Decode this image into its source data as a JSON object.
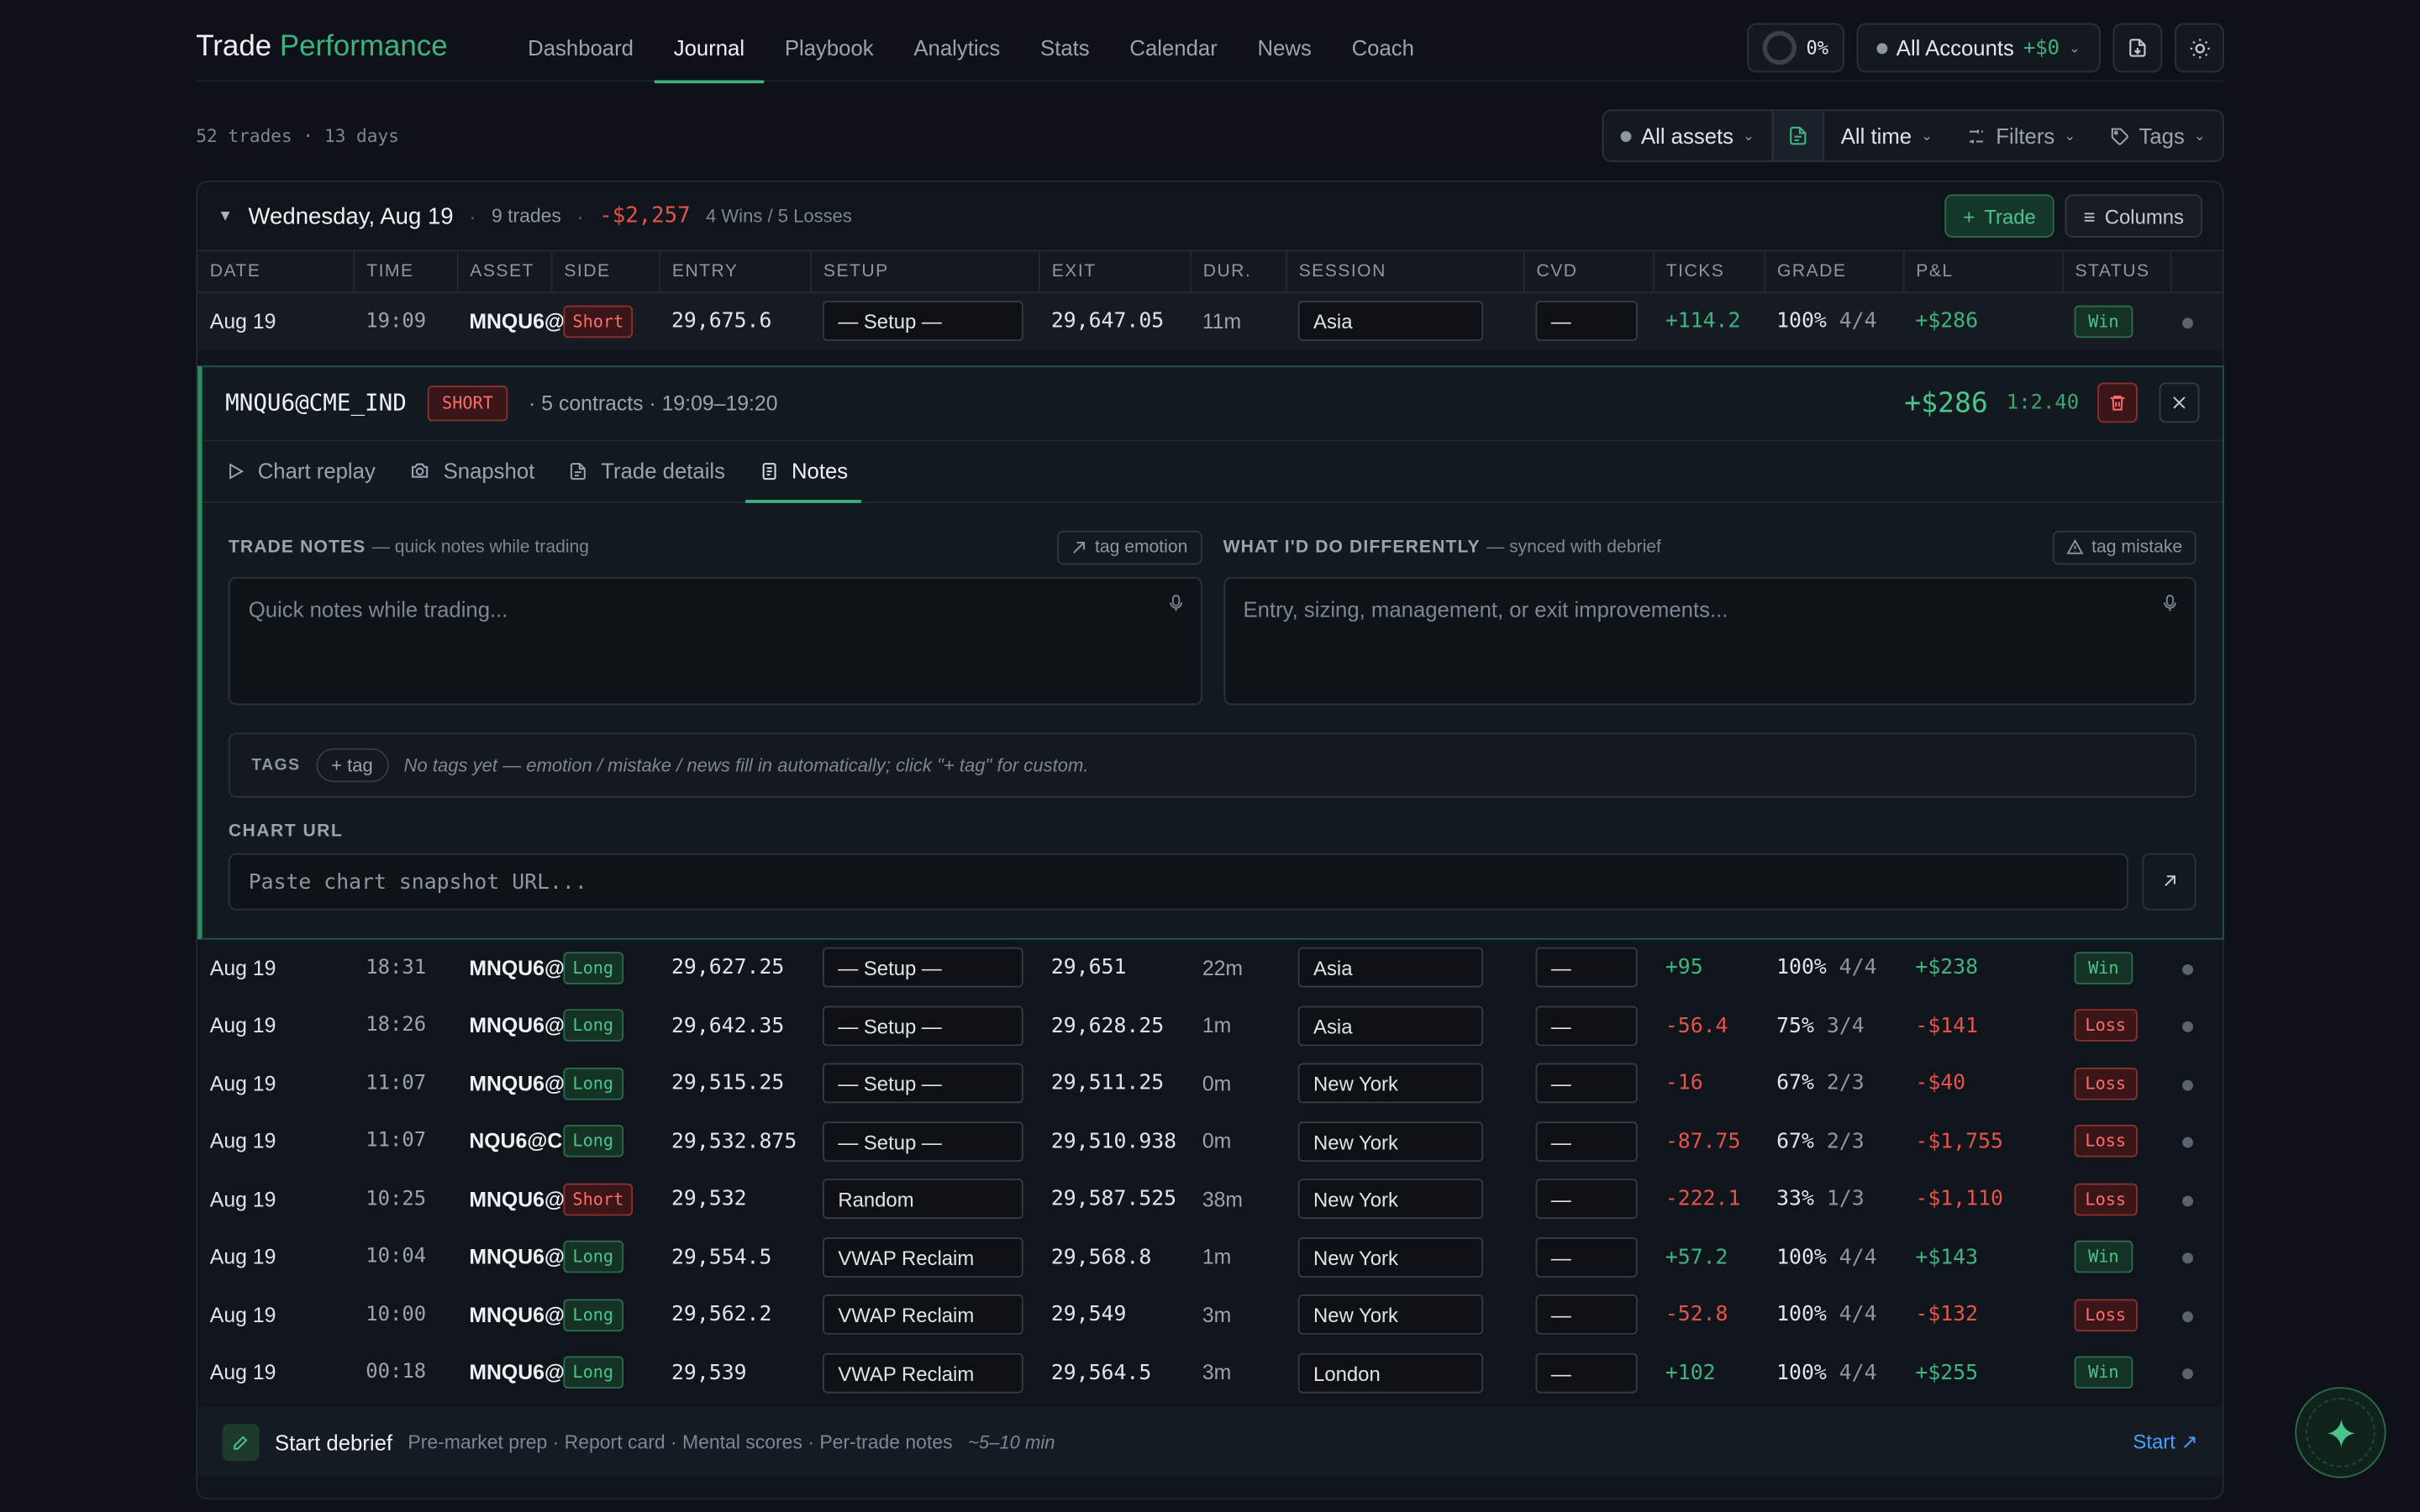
{
  "brand": {
    "title": "Trade",
    "accent": "Performance"
  },
  "nav": [
    "Dashboard",
    "Journal",
    "Playbook",
    "Analytics",
    "Stats",
    "Calendar",
    "News",
    "Coach"
  ],
  "top": {
    "progress": "0%",
    "accounts_label": "All Accounts",
    "accounts_pnl": "+$0"
  },
  "summary": "52 trades · 13 days",
  "filters": {
    "assets": "All assets",
    "time": "All time",
    "filters": "Filters",
    "tags": "Tags"
  },
  "day": {
    "title": "Wednesday, Aug 19",
    "trades": "9 trades",
    "pnl": "-$2,257",
    "wl": "4 Wins / 5 Losses",
    "add_trade": "Trade",
    "columns": "Columns"
  },
  "columns": [
    "DATE",
    "TIME",
    "ASSET",
    "SIDE",
    "ENTRY",
    "SETUP",
    "EXIT",
    "DUR.",
    "SESSION",
    "CVD",
    "TICKS",
    "GRADE",
    "P&L",
    "STATUS"
  ],
  "first_row": {
    "date": "Aug 19",
    "time": "19:09",
    "asset": "MNQU6@",
    "side": "Short",
    "entry": "29,675.6",
    "setup": "— Setup —",
    "exit": "29,647.05",
    "dur": "11m",
    "session": "Asia",
    "cvd": "—",
    "ticks": "+114.2",
    "grade": "100%",
    "grade_n": "4/4",
    "pnl": "+$286",
    "status": "Win"
  },
  "rows": [
    {
      "date": "Aug 19",
      "time": "18:31",
      "asset": "MNQU6@",
      "side": "Long",
      "entry": "29,627.25",
      "setup": "— Setup —",
      "exit": "29,651",
      "dur": "22m",
      "session": "Asia",
      "cvd": "—",
      "ticks": "+95",
      "grade": "100%",
      "grade_n": "4/4",
      "pnl": "+$238",
      "status": "Win"
    },
    {
      "date": "Aug 19",
      "time": "18:26",
      "asset": "MNQU6@",
      "side": "Long",
      "entry": "29,642.35",
      "setup": "— Setup —",
      "exit": "29,628.25",
      "dur": "1m",
      "session": "Asia",
      "cvd": "—",
      "ticks": "-56.4",
      "grade": "75%",
      "grade_n": "3/4",
      "pnl": "-$141",
      "status": "Loss"
    },
    {
      "date": "Aug 19",
      "time": "11:07",
      "asset": "MNQU6@",
      "side": "Long",
      "entry": "29,515.25",
      "setup": "— Setup —",
      "exit": "29,511.25",
      "dur": "0m",
      "session": "New York",
      "cvd": "—",
      "ticks": "-16",
      "grade": "67%",
      "grade_n": "2/3",
      "pnl": "-$40",
      "status": "Loss"
    },
    {
      "date": "Aug 19",
      "time": "11:07",
      "asset": "NQU6@C",
      "side": "Long",
      "entry": "29,532.875",
      "setup": "— Setup —",
      "exit": "29,510.938",
      "dur": "0m",
      "session": "New York",
      "cvd": "—",
      "ticks": "-87.75",
      "grade": "67%",
      "grade_n": "2/3",
      "pnl": "-$1,755",
      "status": "Loss"
    },
    {
      "date": "Aug 19",
      "time": "10:25",
      "asset": "MNQU6@",
      "side": "Short",
      "entry": "29,532",
      "setup": "Random",
      "exit": "29,587.525",
      "dur": "38m",
      "session": "New York",
      "cvd": "—",
      "ticks": "-222.1",
      "grade": "33%",
      "grade_n": "1/3",
      "pnl": "-$1,110",
      "status": "Loss"
    },
    {
      "date": "Aug 19",
      "time": "10:04",
      "asset": "MNQU6@",
      "side": "Long",
      "entry": "29,554.5",
      "setup": "VWAP Reclaim",
      "exit": "29,568.8",
      "dur": "1m",
      "session": "New York",
      "cvd": "—",
      "ticks": "+57.2",
      "grade": "100%",
      "grade_n": "4/4",
      "pnl": "+$143",
      "status": "Win"
    },
    {
      "date": "Aug 19",
      "time": "10:00",
      "asset": "MNQU6@",
      "side": "Long",
      "entry": "29,562.2",
      "setup": "VWAP Reclaim",
      "exit": "29,549",
      "dur": "3m",
      "session": "New York",
      "cvd": "—",
      "ticks": "-52.8",
      "grade": "100%",
      "grade_n": "4/4",
      "pnl": "-$132",
      "status": "Loss"
    },
    {
      "date": "Aug 19",
      "time": "00:18",
      "asset": "MNQU6@",
      "side": "Long",
      "entry": "29,539",
      "setup": "VWAP Reclaim",
      "exit": "29,564.5",
      "dur": "3m",
      "session": "London",
      "cvd": "—",
      "ticks": "+102",
      "grade": "100%",
      "grade_n": "4/4",
      "pnl": "+$255",
      "status": "Win"
    }
  ],
  "panel": {
    "asset": "MNQU6@CME_IND",
    "side": "SHORT",
    "info": "· 5 contracts · 19:09–19:20",
    "pnl": "+$286",
    "rr": "1:2.40",
    "tabs": [
      "Chart replay",
      "Snapshot",
      "Trade details",
      "Notes"
    ],
    "notes_label": "TRADE NOTES",
    "notes_sub": "— quick notes while trading",
    "tag_emotion": "tag emotion",
    "notes_placeholder": "Quick notes while trading...",
    "diff_label": "WHAT I'D DO DIFFERENTLY",
    "diff_sub": "— synced with debrief",
    "tag_mistake": "tag mistake",
    "diff_placeholder": "Entry, sizing, management, or exit improvements...",
    "tags_label": "TAGS",
    "add_tag": "+ tag",
    "tags_hint": "No tags yet — emotion / mistake / news fill in automatically; click \"+ tag\" for custom.",
    "chart_url_label": "CHART URL",
    "chart_url_placeholder": "Paste chart snapshot URL..."
  },
  "debrief": {
    "title": "Start debrief",
    "sub": "Pre-market prep · Report card · Mental scores · Per-trade notes",
    "time": "~5–10 min",
    "start": "Start ↗"
  },
  "colors": {
    "accent": "#3fb37f",
    "loss": "#e5534b",
    "bg": "#0e1218"
  }
}
